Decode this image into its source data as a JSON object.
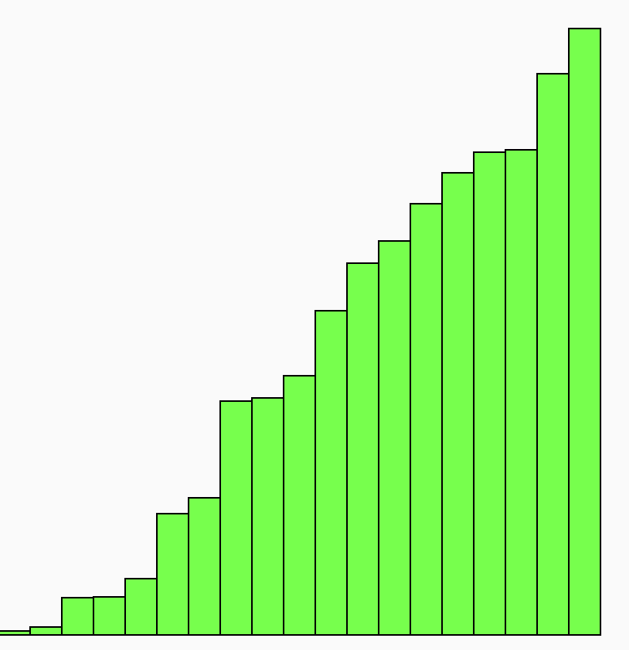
{
  "chart_data": {
    "type": "bar",
    "categories": [
      null,
      null,
      null,
      null,
      null,
      null,
      null,
      null,
      null,
      null,
      null,
      null,
      null,
      null,
      null,
      null,
      null,
      null,
      null
    ],
    "values": [
      5,
      10,
      47,
      48,
      71,
      153,
      173,
      295,
      299,
      327,
      409,
      469,
      497,
      544,
      583,
      609,
      612,
      708,
      765
    ],
    "color": "#77ff4d",
    "ylim": [
      0,
      801
    ]
  }
}
